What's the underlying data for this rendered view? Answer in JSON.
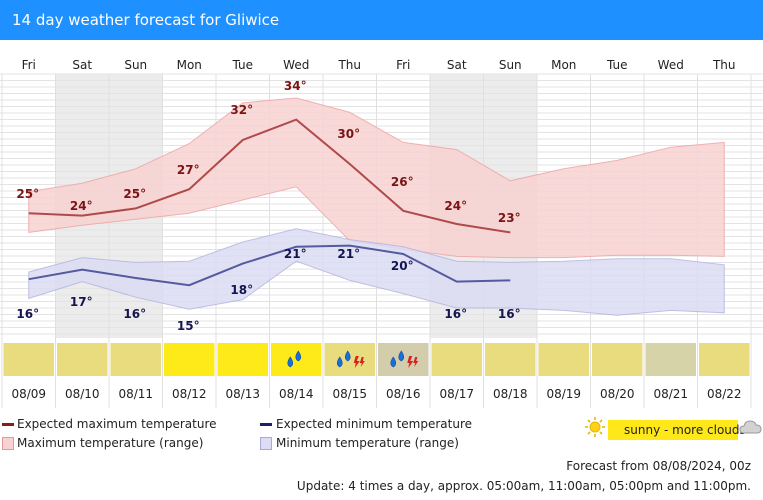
{
  "header": {
    "title": "14 day weather forecast for Gliwice",
    "color": "#1e90ff"
  },
  "chart_data": {
    "type": "line",
    "categories": [
      "Fri",
      "Sat",
      "Sun",
      "Mon",
      "Tue",
      "Wed",
      "Thu",
      "Fri",
      "Sat",
      "Sun",
      "Mon",
      "Tue",
      "Wed",
      "Thu"
    ],
    "dates": [
      "08/09",
      "08/10",
      "08/11",
      "08/12",
      "08/13",
      "08/14",
      "08/15",
      "08/16",
      "08/17",
      "08/18",
      "08/19",
      "08/20",
      "08/21",
      "08/22"
    ],
    "weekend_columns": [
      1,
      2,
      8,
      9
    ],
    "series": [
      {
        "name": "Expected maximum temperature",
        "color": "#b04a4a",
        "values": [
          24.4,
          24.2,
          24.8,
          26.4,
          30.5,
          32.2,
          28.5,
          24.6,
          23.5,
          22.8,
          null,
          null,
          null,
          null
        ]
      },
      {
        "name": "Maximum temperature (range)",
        "color": "#f4b8b8",
        "upper": [
          26.2,
          26.9,
          28.1,
          30.2,
          33.6,
          34.0,
          32.8,
          30.3,
          29.7,
          27.1,
          28.1,
          28.8,
          29.9,
          30.3
        ],
        "lower": [
          22.8,
          23.4,
          23.9,
          24.4,
          25.5,
          26.6,
          22.1,
          21.4,
          20.8,
          20.7,
          20.7,
          20.9,
          20.9,
          20.8
        ]
      },
      {
        "name": "Expected minimum temperature",
        "color": "#545a9e",
        "values": [
          18.9,
          19.7,
          19.0,
          18.4,
          20.2,
          21.6,
          21.7,
          21.0,
          18.7,
          18.8,
          null,
          null,
          null,
          null
        ]
      },
      {
        "name": "Minimum temperature (range)",
        "color": "#c8c8ee",
        "upper": [
          19.5,
          20.7,
          20.3,
          20.4,
          22.0,
          23.1,
          22.2,
          21.6,
          20.4,
          20.3,
          20.4,
          20.6,
          20.6,
          20.1
        ],
        "lower": [
          17.3,
          18.7,
          17.4,
          16.4,
          17.2,
          20.4,
          18.8,
          17.7,
          16.5,
          16.5,
          16.3,
          15.9,
          16.3,
          16.1
        ]
      }
    ],
    "labels_max": [
      "25°",
      "24°",
      "25°",
      "27°",
      "32°",
      "34°",
      "30°",
      "26°",
      "24°",
      "23°"
    ],
    "labels_min": [
      "16°",
      "17°",
      "16°",
      "15°",
      "18°",
      "21°",
      "21°",
      "20°",
      "16°",
      "16°"
    ],
    "label_max_values": [
      25,
      24,
      25,
      27,
      32,
      34,
      30,
      26,
      24,
      23
    ],
    "label_min_values": [
      16,
      17,
      16,
      15,
      18,
      21,
      21,
      20,
      16,
      16
    ],
    "weather": [
      "sunny-more-clouds",
      "sunny-more-clouds",
      "sunny-more-clouds",
      "sunny",
      "sunny",
      "rain",
      "rain-thunder",
      "rain-thunder",
      "sunny-more-clouds",
      "sunny-more-clouds",
      "sunny-more-clouds",
      "sunny-more-clouds",
      "cloudy",
      "sunny-more-clouds"
    ],
    "weather_colors": {
      "sunny": "#ffea19",
      "sunny-more-clouds": "#e9dc7f",
      "rain": "#ffea19",
      "rain-thunder": "#e9dc7f",
      "cloudy": "#d6d3a9"
    },
    "weather_cell_overrides": {
      "7": "#d4cdab"
    },
    "ylim": [
      14,
      36
    ],
    "grid": true,
    "legend_position": "bottom"
  },
  "legend": {
    "max_expected": "Expected maximum temperature",
    "max_range": "Maximum temperature (range)",
    "min_expected": "Expected minimum temperature",
    "min_range": "Minimum temperature (range)",
    "sample_label": "sunny - more clouds"
  },
  "footer": {
    "forecast_from": "Forecast from 08/08/2024, 00z",
    "update": "Update: 4 times a day, approx. 05:00am, 11:00am, 05:00pm and 11:00pm."
  }
}
